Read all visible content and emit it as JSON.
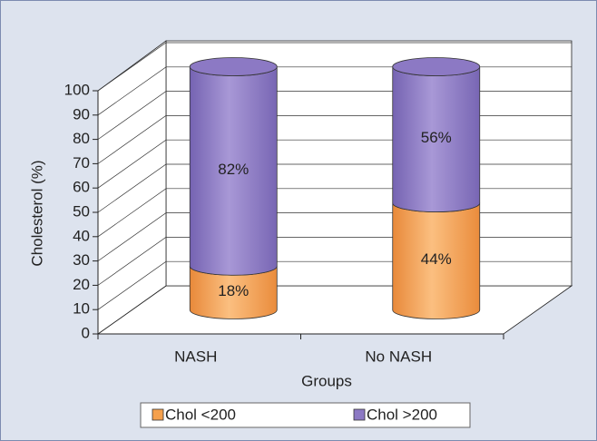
{
  "chart_data": {
    "type": "bar3d_stacked",
    "xlabel": "Groups",
    "ylabel": "Cholesterol (%)",
    "categories": [
      "NASH",
      "No NASH"
    ],
    "series": [
      {
        "name": "Chol <200",
        "color": "#f5a04c",
        "values": [
          18,
          44
        ],
        "value_labels": [
          "18%",
          "44%"
        ]
      },
      {
        "name": "Chol >200",
        "color": "#8c79c4",
        "values": [
          82,
          56
        ],
        "value_labels": [
          "82%",
          "56%"
        ]
      }
    ],
    "ylim": [
      0,
      100
    ],
    "yticks": [
      0,
      10,
      20,
      30,
      40,
      50,
      60,
      70,
      80,
      90,
      100
    ],
    "grid": true
  }
}
